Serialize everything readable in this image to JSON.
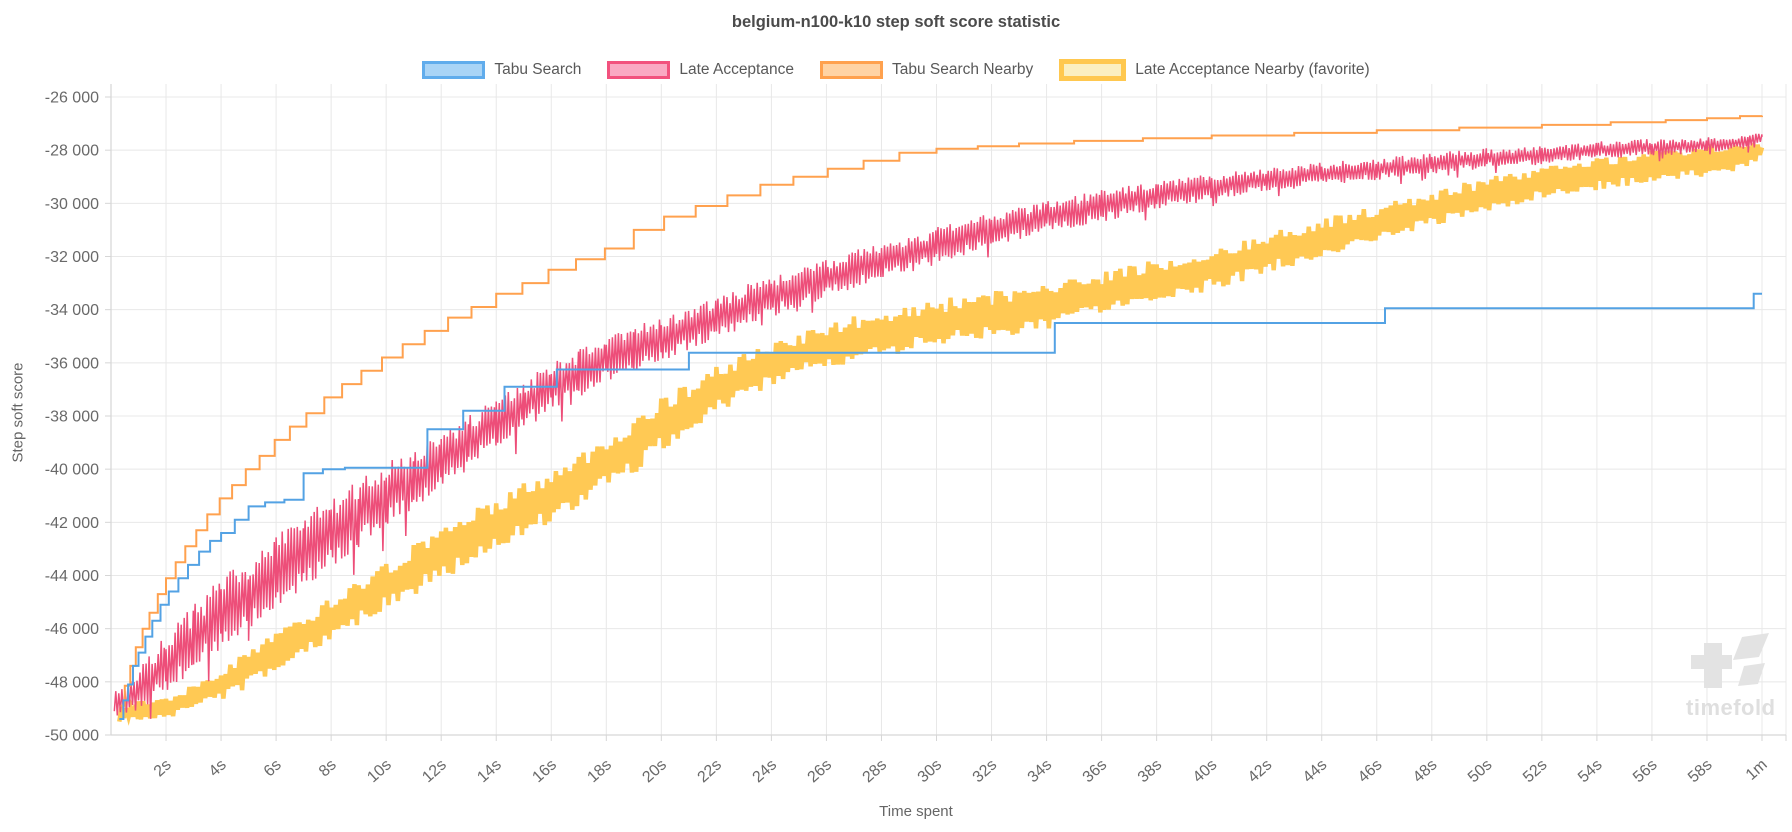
{
  "header": {
    "title": "belgium-n100-k10 step soft score statistic"
  },
  "legend": {
    "position": "top",
    "items": [
      {
        "label": "Tabu Search",
        "fill": "#A9D4F6",
        "border": "#60ACEC",
        "border_width": 3
      },
      {
        "label": "Late Acceptance",
        "fill": "#FAA9C3",
        "border": "#F2527E",
        "border_width": 3
      },
      {
        "label": "Tabu Search Nearby",
        "fill": "#FFD3A4",
        "border": "#FFA14E",
        "border_width": 3
      },
      {
        "label": "Late Acceptance Nearby (favorite)",
        "fill": "#FBEFC0",
        "border": "#FFC84F",
        "border_width": 5
      }
    ]
  },
  "axes": {
    "y": {
      "title": "Step soft score"
    },
    "x": {
      "title": "Time spent"
    }
  },
  "watermark": {
    "text": "timefold"
  },
  "chart_data": {
    "type": "line",
    "title": "belgium-n100-k10 step soft score statistic",
    "xlabel": "Time spent",
    "ylabel": "Step soft score",
    "xlim_seconds": [
      0,
      60.9
    ],
    "ylim": [
      -50000,
      -26000
    ],
    "grid": true,
    "legend_position": "top",
    "grid_color": "#e8e8e8",
    "axis_color": "#d6d6d6",
    "tick_text_color": "#696969",
    "y_ticks": [
      {
        "v": -26000,
        "label": "-26 000"
      },
      {
        "v": -28000,
        "label": "-28 000"
      },
      {
        "v": -30000,
        "label": "-30 000"
      },
      {
        "v": -32000,
        "label": "-32 000"
      },
      {
        "v": -34000,
        "label": "-34 000"
      },
      {
        "v": -36000,
        "label": "-36 000"
      },
      {
        "v": -38000,
        "label": "-38 000"
      },
      {
        "v": -40000,
        "label": "-40 000"
      },
      {
        "v": -42000,
        "label": "-42 000"
      },
      {
        "v": -44000,
        "label": "-44 000"
      },
      {
        "v": -46000,
        "label": "-46 000"
      },
      {
        "v": -48000,
        "label": "-48 000"
      },
      {
        "v": -50000,
        "label": "-50 000"
      }
    ],
    "x_ticks": [
      {
        "t": 2,
        "label": "2s"
      },
      {
        "t": 4,
        "label": "4s"
      },
      {
        "t": 6,
        "label": "6s"
      },
      {
        "t": 8,
        "label": "8s"
      },
      {
        "t": 10,
        "label": "10s"
      },
      {
        "t": 12,
        "label": "12s"
      },
      {
        "t": 14,
        "label": "14s"
      },
      {
        "t": 16,
        "label": "16s"
      },
      {
        "t": 18,
        "label": "18s"
      },
      {
        "t": 20,
        "label": "20s"
      },
      {
        "t": 22,
        "label": "22s"
      },
      {
        "t": 24,
        "label": "24s"
      },
      {
        "t": 26,
        "label": "26s"
      },
      {
        "t": 28,
        "label": "28s"
      },
      {
        "t": 30,
        "label": "30s"
      },
      {
        "t": 32,
        "label": "32s"
      },
      {
        "t": 34,
        "label": "34s"
      },
      {
        "t": 36,
        "label": "36s"
      },
      {
        "t": 38,
        "label": "38s"
      },
      {
        "t": 40,
        "label": "40s"
      },
      {
        "t": 42,
        "label": "42s"
      },
      {
        "t": 44,
        "label": "44s"
      },
      {
        "t": 46,
        "label": "46s"
      },
      {
        "t": 48,
        "label": "48s"
      },
      {
        "t": 50,
        "label": "50s"
      },
      {
        "t": 52,
        "label": "52s"
      },
      {
        "t": 54,
        "label": "54s"
      },
      {
        "t": 56,
        "label": "56s"
      },
      {
        "t": 58,
        "label": "58s"
      },
      {
        "t": 60,
        "label": "1m"
      }
    ],
    "draw_order": [
      3,
      1,
      2,
      0
    ],
    "series": [
      {
        "name": "Tabu Search",
        "style": "step",
        "color": "#53A2E4",
        "line_width": 2,
        "points": [
          [
            0.3,
            -49400
          ],
          [
            0.45,
            -48700
          ],
          [
            0.62,
            -48100
          ],
          [
            0.8,
            -47400
          ],
          [
            1.0,
            -46900
          ],
          [
            1.25,
            -46300
          ],
          [
            1.5,
            -45700
          ],
          [
            1.8,
            -45100
          ],
          [
            2.1,
            -44600
          ],
          [
            2.45,
            -44100
          ],
          [
            2.8,
            -43600
          ],
          [
            3.2,
            -43100
          ],
          [
            3.6,
            -42700
          ],
          [
            4.0,
            -42400
          ],
          [
            4.5,
            -41900
          ],
          [
            5.0,
            -41400
          ],
          [
            5.6,
            -41250
          ],
          [
            6.3,
            -41150
          ],
          [
            7.0,
            -40150
          ],
          [
            7.7,
            -40000
          ],
          [
            8.5,
            -39950
          ],
          [
            11.5,
            -38500
          ],
          [
            12.8,
            -37800
          ],
          [
            14.3,
            -36900
          ],
          [
            16.2,
            -36250
          ],
          [
            21.0,
            -35620
          ],
          [
            34.3,
            -34500
          ],
          [
            46.3,
            -33950
          ],
          [
            59.7,
            -33400
          ],
          [
            60.0,
            -33400
          ]
        ]
      },
      {
        "name": "Late Acceptance",
        "style": "noisy",
        "color": "#ED4E79",
        "line_width": 1.5,
        "noise_dt": 0.055,
        "seed": 7,
        "spiky": true,
        "points": [
          [
            0.12,
            -48900,
            500
          ],
          [
            1,
            -48300,
            800
          ],
          [
            2,
            -47300,
            1100
          ],
          [
            3,
            -46400,
            1300
          ],
          [
            4,
            -45500,
            1400
          ],
          [
            5,
            -44700,
            1400
          ],
          [
            6,
            -43900,
            1400
          ],
          [
            7,
            -43100,
            1400
          ],
          [
            8,
            -42400,
            1300
          ],
          [
            9,
            -41700,
            1300
          ],
          [
            10,
            -41000,
            1200
          ],
          [
            11,
            -40300,
            1200
          ],
          [
            12,
            -39700,
            1100
          ],
          [
            13,
            -39000,
            1000
          ],
          [
            14,
            -38300,
            1000
          ],
          [
            15,
            -37600,
            950
          ],
          [
            16,
            -36900,
            900
          ],
          [
            17,
            -36400,
            900
          ],
          [
            18,
            -35900,
            900
          ],
          [
            19,
            -35500,
            850
          ],
          [
            20,
            -35100,
            850
          ],
          [
            22,
            -34300,
            800
          ],
          [
            24,
            -33500,
            800
          ],
          [
            26,
            -32800,
            750
          ],
          [
            28,
            -32200,
            700
          ],
          [
            30,
            -31600,
            700
          ],
          [
            32,
            -31000,
            650
          ],
          [
            34,
            -30500,
            600
          ],
          [
            36,
            -30100,
            600
          ],
          [
            38,
            -29700,
            550
          ],
          [
            40,
            -29400,
            500
          ],
          [
            42,
            -29100,
            480
          ],
          [
            44,
            -28900,
            450
          ],
          [
            46,
            -28700,
            420
          ],
          [
            48,
            -28500,
            400
          ],
          [
            50,
            -28300,
            380
          ],
          [
            52,
            -28200,
            350
          ],
          [
            54,
            -28000,
            330
          ],
          [
            56,
            -27900,
            320
          ],
          [
            58,
            -27800,
            300
          ],
          [
            59.5,
            -27700,
            280
          ],
          [
            60,
            -27500,
            150
          ]
        ]
      },
      {
        "name": "Tabu Search Nearby",
        "style": "step",
        "color": "#FFA14E",
        "line_width": 2,
        "points": [
          [
            0.35,
            -48900
          ],
          [
            0.5,
            -48150
          ],
          [
            0.7,
            -47400
          ],
          [
            0.9,
            -46700
          ],
          [
            1.15,
            -46000
          ],
          [
            1.4,
            -45400
          ],
          [
            1.7,
            -44700
          ],
          [
            2.0,
            -44100
          ],
          [
            2.35,
            -43500
          ],
          [
            2.7,
            -42900
          ],
          [
            3.1,
            -42300
          ],
          [
            3.5,
            -41700
          ],
          [
            3.95,
            -41100
          ],
          [
            4.4,
            -40600
          ],
          [
            4.9,
            -40000
          ],
          [
            5.4,
            -39500
          ],
          [
            5.95,
            -38900
          ],
          [
            6.5,
            -38400
          ],
          [
            7.1,
            -37900
          ],
          [
            7.75,
            -37300
          ],
          [
            8.4,
            -36800
          ],
          [
            9.1,
            -36300
          ],
          [
            9.85,
            -35800
          ],
          [
            10.6,
            -35300
          ],
          [
            11.4,
            -34800
          ],
          [
            12.25,
            -34300
          ],
          [
            13.1,
            -33900
          ],
          [
            14.0,
            -33400
          ],
          [
            14.95,
            -33000
          ],
          [
            15.9,
            -32500
          ],
          [
            16.9,
            -32100
          ],
          [
            17.95,
            -31700
          ],
          [
            19.0,
            -31000
          ],
          [
            20.1,
            -30500
          ],
          [
            21.25,
            -30100
          ],
          [
            22.4,
            -29700
          ],
          [
            23.6,
            -29300
          ],
          [
            24.8,
            -29000
          ],
          [
            26.05,
            -28700
          ],
          [
            27.35,
            -28400
          ],
          [
            28.65,
            -28100
          ],
          [
            30.0,
            -27950
          ],
          [
            31.5,
            -27850
          ],
          [
            33.0,
            -27750
          ],
          [
            35.0,
            -27650
          ],
          [
            37.5,
            -27550
          ],
          [
            40.0,
            -27450
          ],
          [
            43.0,
            -27350
          ],
          [
            46.0,
            -27250
          ],
          [
            49.0,
            -27150
          ],
          [
            52.0,
            -27050
          ],
          [
            54.5,
            -26950
          ],
          [
            56.5,
            -26870
          ],
          [
            58.0,
            -26800
          ],
          [
            59.2,
            -26720
          ],
          [
            60.0,
            -26700
          ]
        ]
      },
      {
        "name": "Late Acceptance Nearby (favorite)",
        "style": "noisy",
        "color": "#FFC954",
        "line_width": 4.5,
        "noise_dt": 0.085,
        "seed": 13,
        "spiky": false,
        "favorite": true,
        "points": [
          [
            0.3,
            -49200,
            400
          ],
          [
            1,
            -49100,
            400
          ],
          [
            2,
            -49000,
            450
          ],
          [
            3,
            -48600,
            500
          ],
          [
            4,
            -48100,
            600
          ],
          [
            5,
            -47500,
            700
          ],
          [
            6,
            -46900,
            750
          ],
          [
            7,
            -46300,
            800
          ],
          [
            8,
            -45600,
            800
          ],
          [
            9,
            -45000,
            850
          ],
          [
            10,
            -44400,
            900
          ],
          [
            11,
            -43800,
            950
          ],
          [
            12,
            -43200,
            1000
          ],
          [
            13,
            -42600,
            1000
          ],
          [
            14,
            -42100,
            1000
          ],
          [
            15,
            -41500,
            1000
          ],
          [
            16,
            -41000,
            1000
          ],
          [
            17,
            -40400,
            1000
          ],
          [
            18,
            -39800,
            1000
          ],
          [
            19,
            -39200,
            1000
          ],
          [
            20,
            -38300,
            1000
          ],
          [
            21,
            -37700,
            950
          ],
          [
            22,
            -37000,
            900
          ],
          [
            23,
            -36500,
            850
          ],
          [
            24,
            -36000,
            850
          ],
          [
            25,
            -35700,
            850
          ],
          [
            26,
            -35400,
            850
          ],
          [
            27,
            -35100,
            850
          ],
          [
            28,
            -34900,
            900
          ],
          [
            29,
            -34700,
            900
          ],
          [
            30,
            -34500,
            900
          ],
          [
            32,
            -34200,
            900
          ],
          [
            34,
            -33900,
            850
          ],
          [
            36,
            -33400,
            800
          ],
          [
            38,
            -32900,
            800
          ],
          [
            40,
            -32500,
            800
          ],
          [
            42,
            -31900,
            750
          ],
          [
            44,
            -31300,
            750
          ],
          [
            46,
            -30800,
            700
          ],
          [
            48,
            -30200,
            700
          ],
          [
            50,
            -29700,
            650
          ],
          [
            52,
            -29200,
            650
          ],
          [
            54,
            -28900,
            600
          ],
          [
            56,
            -28600,
            600
          ],
          [
            58,
            -28400,
            600
          ],
          [
            59.5,
            -28200,
            550
          ],
          [
            60,
            -27900,
            300
          ]
        ]
      }
    ]
  }
}
